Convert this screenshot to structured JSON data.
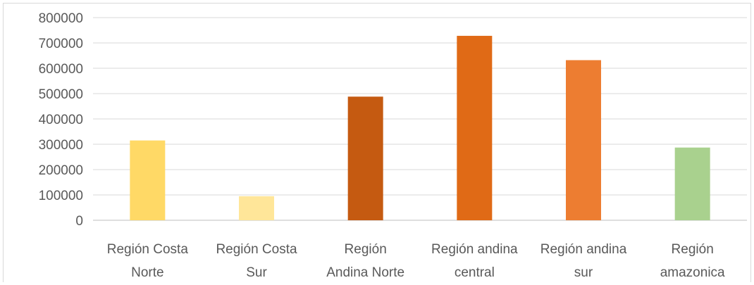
{
  "chart_data": {
    "type": "bar",
    "title": "",
    "xlabel": "",
    "ylabel": "",
    "ylim": [
      0,
      800000
    ],
    "yticks": [
      "0",
      "100000",
      "200000",
      "300000",
      "400000",
      "500000",
      "600000",
      "700000",
      "800000"
    ],
    "grid": true,
    "legend": "none",
    "categories": [
      [
        "Región Costa",
        "Norte"
      ],
      [
        "Región Costa",
        "Sur"
      ],
      [
        "Región",
        "Andina Norte"
      ],
      [
        "Región andina",
        "central"
      ],
      [
        "Región andina",
        "sur"
      ],
      [
        "Región",
        "amazonica"
      ]
    ],
    "values": [
      315000,
      95000,
      488000,
      728000,
      632000,
      287000
    ],
    "colors": [
      "#FFD966",
      "#FFE699",
      "#C55A11",
      "#E06A16",
      "#ED7D31",
      "#A9D18E"
    ]
  }
}
